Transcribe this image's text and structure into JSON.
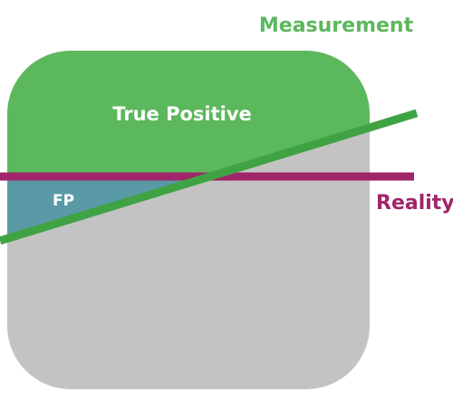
{
  "labels": {
    "measurement": "Measurement",
    "true_positive": "True Positive",
    "false_positive": "FP",
    "reality": "Reality"
  },
  "colors": {
    "measurement": "#5cb85c",
    "measurement_line": "#3fa344",
    "population": "#c3c3c3",
    "false_positive_region": "#5a9aa6",
    "reality": "#a0256a",
    "region_text": "#ffffff"
  }
}
